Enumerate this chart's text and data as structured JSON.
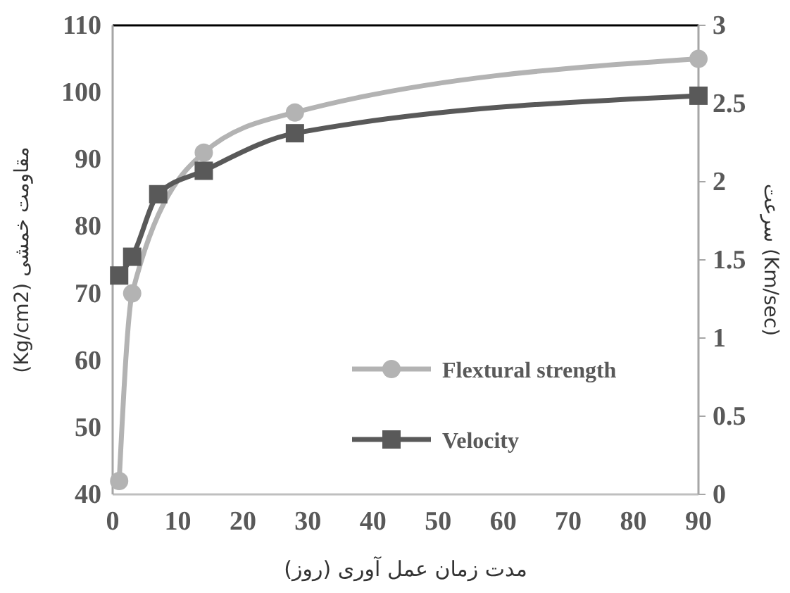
{
  "chart_data": {
    "type": "line",
    "xlabel": "مدت زمان عمل آوری (روز)",
    "ylabel": "مقاومت خمشی (Kg/cm2)",
    "y2label": "سرعت (Km/sec)",
    "x": [
      1,
      3,
      7,
      14,
      28,
      90
    ],
    "series": [
      {
        "name": "Flextural strength",
        "color": "#b3b3b3",
        "marker": "circle",
        "values": [
          42,
          70,
          null,
          91,
          97,
          105
        ]
      },
      {
        "name": "Velocity",
        "color": "#595959",
        "marker": "square",
        "axis": "y2",
        "values": [
          1.4,
          1.52,
          1.92,
          2.07,
          2.31,
          2.55
        ]
      }
    ],
    "xlim": [
      0,
      90
    ],
    "xticks": [
      0,
      10,
      20,
      30,
      40,
      50,
      60,
      70,
      80,
      90
    ],
    "ylim": [
      40,
      110
    ],
    "yticks": [
      40,
      50,
      60,
      70,
      80,
      90,
      100,
      110
    ],
    "y2lim": [
      0,
      3
    ],
    "y2ticks": [
      0,
      0.5,
      1,
      1.5,
      2,
      2.5,
      3
    ],
    "grid": false,
    "legend": "bottom right"
  }
}
